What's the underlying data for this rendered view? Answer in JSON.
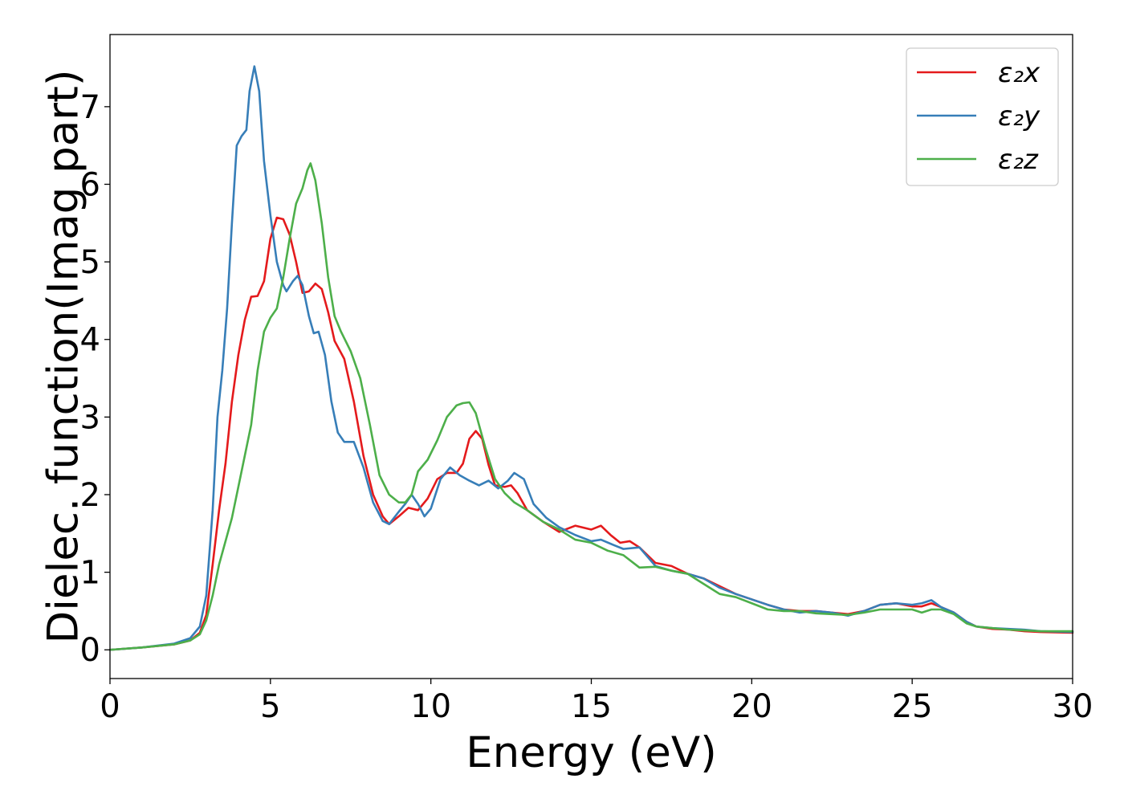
{
  "chart_data": {
    "type": "line",
    "title": "",
    "xlabel": "Energy (eV)",
    "ylabel": "Dielec. function(Imag part)",
    "xlim": [
      0,
      30
    ],
    "ylim": [
      -0.37,
      7.93
    ],
    "xticks": [
      0,
      5,
      10,
      15,
      20,
      25,
      30
    ],
    "yticks": [
      0,
      1,
      2,
      3,
      4,
      5,
      6,
      7
    ],
    "grid": false,
    "legend_position": "top-right",
    "series": [
      {
        "name": "ε₂x",
        "color": "#e41a1c",
        "points": [
          [
            0,
            0
          ],
          [
            1,
            0.03
          ],
          [
            2,
            0.07
          ],
          [
            2.5,
            0.12
          ],
          [
            2.8,
            0.22
          ],
          [
            3.0,
            0.45
          ],
          [
            3.2,
            1.1
          ],
          [
            3.4,
            1.8
          ],
          [
            3.6,
            2.4
          ],
          [
            3.8,
            3.2
          ],
          [
            4.0,
            3.8
          ],
          [
            4.2,
            4.25
          ],
          [
            4.4,
            4.55
          ],
          [
            4.6,
            4.56
          ],
          [
            4.8,
            4.75
          ],
          [
            5.0,
            5.3
          ],
          [
            5.2,
            5.57
          ],
          [
            5.4,
            5.55
          ],
          [
            5.6,
            5.35
          ],
          [
            5.8,
            5.0
          ],
          [
            6.0,
            4.6
          ],
          [
            6.2,
            4.62
          ],
          [
            6.4,
            4.72
          ],
          [
            6.6,
            4.65
          ],
          [
            6.8,
            4.35
          ],
          [
            7.0,
            3.98
          ],
          [
            7.3,
            3.75
          ],
          [
            7.6,
            3.2
          ],
          [
            7.9,
            2.5
          ],
          [
            8.2,
            2.0
          ],
          [
            8.5,
            1.72
          ],
          [
            8.7,
            1.62
          ],
          [
            9.0,
            1.72
          ],
          [
            9.3,
            1.83
          ],
          [
            9.6,
            1.8
          ],
          [
            9.9,
            1.95
          ],
          [
            10.2,
            2.2
          ],
          [
            10.5,
            2.28
          ],
          [
            10.8,
            2.28
          ],
          [
            11.0,
            2.4
          ],
          [
            11.2,
            2.72
          ],
          [
            11.4,
            2.82
          ],
          [
            11.6,
            2.72
          ],
          [
            11.8,
            2.38
          ],
          [
            12.0,
            2.12
          ],
          [
            12.3,
            2.1
          ],
          [
            12.5,
            2.12
          ],
          [
            12.7,
            2.02
          ],
          [
            13.0,
            1.8
          ],
          [
            13.5,
            1.65
          ],
          [
            14.0,
            1.52
          ],
          [
            14.5,
            1.6
          ],
          [
            15.0,
            1.55
          ],
          [
            15.3,
            1.6
          ],
          [
            15.6,
            1.48
          ],
          [
            15.9,
            1.38
          ],
          [
            16.2,
            1.4
          ],
          [
            16.5,
            1.32
          ],
          [
            17.0,
            1.12
          ],
          [
            17.5,
            1.08
          ],
          [
            18.0,
            0.98
          ],
          [
            18.5,
            0.92
          ],
          [
            19.0,
            0.82
          ],
          [
            19.5,
            0.72
          ],
          [
            20.0,
            0.65
          ],
          [
            20.5,
            0.58
          ],
          [
            21.0,
            0.52
          ],
          [
            21.5,
            0.5
          ],
          [
            22.0,
            0.5
          ],
          [
            22.5,
            0.48
          ],
          [
            23.0,
            0.46
          ],
          [
            23.5,
            0.5
          ],
          [
            24.0,
            0.58
          ],
          [
            24.5,
            0.6
          ],
          [
            25.0,
            0.56
          ],
          [
            25.3,
            0.56
          ],
          [
            25.6,
            0.6
          ],
          [
            25.9,
            0.55
          ],
          [
            26.3,
            0.48
          ],
          [
            26.7,
            0.36
          ],
          [
            27.0,
            0.3
          ],
          [
            27.5,
            0.27
          ],
          [
            28.0,
            0.26
          ],
          [
            28.5,
            0.24
          ],
          [
            29.0,
            0.23
          ],
          [
            30.0,
            0.22
          ]
        ]
      },
      {
        "name": "ε₂y",
        "color": "#377eb8",
        "points": [
          [
            0,
            0
          ],
          [
            1,
            0.03
          ],
          [
            2,
            0.08
          ],
          [
            2.5,
            0.15
          ],
          [
            2.8,
            0.3
          ],
          [
            3.0,
            0.7
          ],
          [
            3.2,
            1.8
          ],
          [
            3.35,
            3.0
          ],
          [
            3.5,
            3.6
          ],
          [
            3.65,
            4.4
          ],
          [
            3.8,
            5.5
          ],
          [
            3.95,
            6.5
          ],
          [
            4.1,
            6.62
          ],
          [
            4.25,
            6.7
          ],
          [
            4.35,
            7.2
          ],
          [
            4.5,
            7.52
          ],
          [
            4.65,
            7.2
          ],
          [
            4.8,
            6.3
          ],
          [
            5.0,
            5.6
          ],
          [
            5.2,
            5.0
          ],
          [
            5.4,
            4.7
          ],
          [
            5.5,
            4.62
          ],
          [
            5.7,
            4.75
          ],
          [
            5.85,
            4.82
          ],
          [
            6.0,
            4.7
          ],
          [
            6.2,
            4.3
          ],
          [
            6.35,
            4.08
          ],
          [
            6.5,
            4.1
          ],
          [
            6.7,
            3.8
          ],
          [
            6.9,
            3.2
          ],
          [
            7.1,
            2.8
          ],
          [
            7.3,
            2.68
          ],
          [
            7.6,
            2.68
          ],
          [
            7.9,
            2.35
          ],
          [
            8.2,
            1.9
          ],
          [
            8.5,
            1.66
          ],
          [
            8.7,
            1.62
          ],
          [
            9.0,
            1.78
          ],
          [
            9.2,
            1.88
          ],
          [
            9.4,
            2.0
          ],
          [
            9.6,
            1.88
          ],
          [
            9.8,
            1.72
          ],
          [
            10.0,
            1.82
          ],
          [
            10.3,
            2.2
          ],
          [
            10.6,
            2.35
          ],
          [
            10.9,
            2.25
          ],
          [
            11.2,
            2.18
          ],
          [
            11.5,
            2.12
          ],
          [
            11.8,
            2.18
          ],
          [
            12.1,
            2.08
          ],
          [
            12.4,
            2.18
          ],
          [
            12.6,
            2.28
          ],
          [
            12.9,
            2.2
          ],
          [
            13.2,
            1.88
          ],
          [
            13.6,
            1.7
          ],
          [
            14.0,
            1.58
          ],
          [
            14.5,
            1.48
          ],
          [
            15.0,
            1.4
          ],
          [
            15.3,
            1.42
          ],
          [
            15.7,
            1.35
          ],
          [
            16.0,
            1.3
          ],
          [
            16.5,
            1.32
          ],
          [
            17.0,
            1.08
          ],
          [
            17.5,
            1.02
          ],
          [
            18.0,
            0.98
          ],
          [
            18.5,
            0.92
          ],
          [
            19.0,
            0.8
          ],
          [
            19.5,
            0.72
          ],
          [
            20.0,
            0.65
          ],
          [
            20.5,
            0.58
          ],
          [
            21.0,
            0.52
          ],
          [
            21.5,
            0.48
          ],
          [
            22.0,
            0.5
          ],
          [
            22.5,
            0.48
          ],
          [
            23.0,
            0.44
          ],
          [
            23.5,
            0.5
          ],
          [
            24.0,
            0.58
          ],
          [
            24.5,
            0.6
          ],
          [
            25.0,
            0.58
          ],
          [
            25.3,
            0.6
          ],
          [
            25.6,
            0.64
          ],
          [
            25.9,
            0.55
          ],
          [
            26.3,
            0.48
          ],
          [
            26.7,
            0.36
          ],
          [
            27.0,
            0.3
          ],
          [
            27.5,
            0.28
          ],
          [
            28.0,
            0.27
          ],
          [
            28.5,
            0.26
          ],
          [
            29.0,
            0.24
          ],
          [
            30.0,
            0.23
          ]
        ]
      },
      {
        "name": "ε₂z",
        "color": "#4daf4a",
        "points": [
          [
            0,
            0
          ],
          [
            1,
            0.03
          ],
          [
            2,
            0.07
          ],
          [
            2.5,
            0.12
          ],
          [
            2.8,
            0.2
          ],
          [
            3.0,
            0.38
          ],
          [
            3.2,
            0.7
          ],
          [
            3.4,
            1.1
          ],
          [
            3.6,
            1.4
          ],
          [
            3.8,
            1.7
          ],
          [
            4.0,
            2.1
          ],
          [
            4.2,
            2.5
          ],
          [
            4.4,
            2.9
          ],
          [
            4.6,
            3.6
          ],
          [
            4.8,
            4.1
          ],
          [
            5.0,
            4.28
          ],
          [
            5.2,
            4.4
          ],
          [
            5.4,
            4.8
          ],
          [
            5.6,
            5.3
          ],
          [
            5.8,
            5.75
          ],
          [
            6.0,
            5.95
          ],
          [
            6.15,
            6.18
          ],
          [
            6.25,
            6.27
          ],
          [
            6.4,
            6.05
          ],
          [
            6.6,
            5.5
          ],
          [
            6.8,
            4.8
          ],
          [
            7.0,
            4.3
          ],
          [
            7.2,
            4.1
          ],
          [
            7.5,
            3.85
          ],
          [
            7.8,
            3.5
          ],
          [
            8.1,
            2.9
          ],
          [
            8.4,
            2.25
          ],
          [
            8.7,
            2.0
          ],
          [
            9.0,
            1.9
          ],
          [
            9.2,
            1.9
          ],
          [
            9.4,
            2.0
          ],
          [
            9.6,
            2.3
          ],
          [
            9.9,
            2.45
          ],
          [
            10.2,
            2.7
          ],
          [
            10.5,
            3.0
          ],
          [
            10.8,
            3.15
          ],
          [
            11.0,
            3.18
          ],
          [
            11.2,
            3.19
          ],
          [
            11.4,
            3.05
          ],
          [
            11.7,
            2.6
          ],
          [
            12.0,
            2.2
          ],
          [
            12.3,
            2.02
          ],
          [
            12.6,
            1.9
          ],
          [
            13.0,
            1.8
          ],
          [
            13.5,
            1.65
          ],
          [
            14.0,
            1.55
          ],
          [
            14.5,
            1.42
          ],
          [
            15.0,
            1.38
          ],
          [
            15.5,
            1.28
          ],
          [
            16.0,
            1.22
          ],
          [
            16.5,
            1.06
          ],
          [
            17.0,
            1.07
          ],
          [
            17.5,
            1.02
          ],
          [
            18.0,
            0.98
          ],
          [
            18.5,
            0.85
          ],
          [
            19.0,
            0.72
          ],
          [
            19.5,
            0.68
          ],
          [
            20.0,
            0.6
          ],
          [
            20.5,
            0.52
          ],
          [
            21.0,
            0.5
          ],
          [
            21.5,
            0.5
          ],
          [
            22.0,
            0.47
          ],
          [
            22.5,
            0.46
          ],
          [
            23.0,
            0.45
          ],
          [
            23.5,
            0.48
          ],
          [
            24.0,
            0.52
          ],
          [
            24.5,
            0.52
          ],
          [
            25.0,
            0.52
          ],
          [
            25.3,
            0.48
          ],
          [
            25.6,
            0.52
          ],
          [
            25.9,
            0.52
          ],
          [
            26.3,
            0.46
          ],
          [
            26.7,
            0.34
          ],
          [
            27.0,
            0.3
          ],
          [
            27.5,
            0.28
          ],
          [
            28.0,
            0.26
          ],
          [
            28.5,
            0.25
          ],
          [
            29.0,
            0.24
          ],
          [
            30.0,
            0.24
          ]
        ]
      }
    ]
  }
}
